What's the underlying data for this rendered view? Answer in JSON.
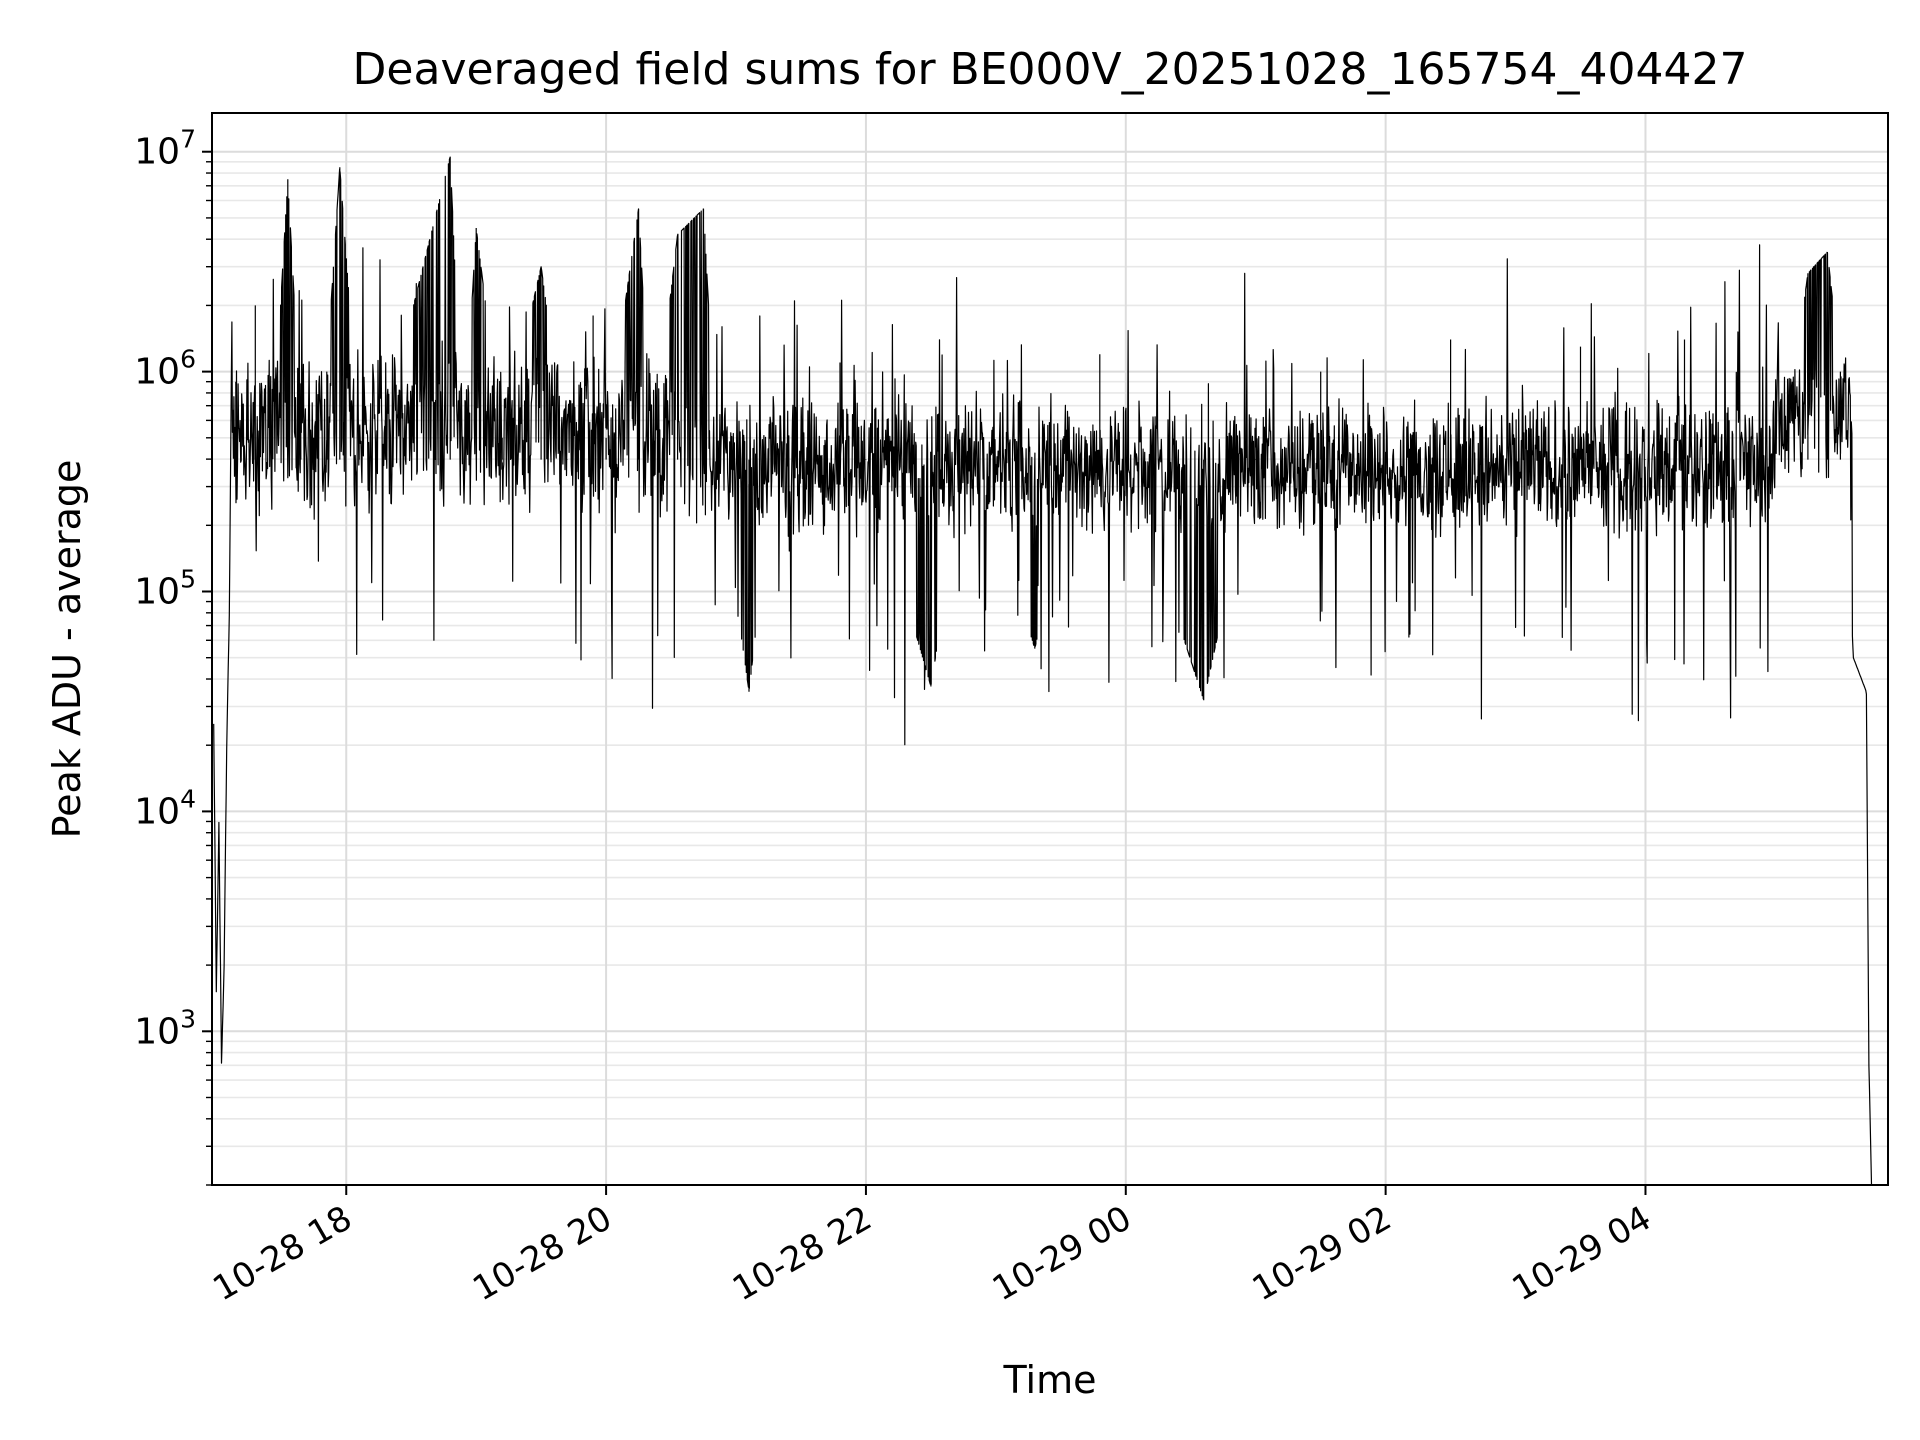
{
  "chart_data": {
    "type": "line",
    "title": "Deaveraged field sums for BE000V_20251028_165754_404427",
    "xlabel": "Time",
    "ylabel": "Peak ADU - average",
    "yscale": "log",
    "ylim": [
      200,
      15000000
    ],
    "xlim": [
      "10-28 16:58",
      "10-29 05:52"
    ],
    "grid": true,
    "legend": "none",
    "line_color": "#000000",
    "x_ticks": [
      {
        "label": "10-28 18",
        "hour": 18
      },
      {
        "label": "10-28 20",
        "hour": 20
      },
      {
        "label": "10-28 22",
        "hour": 22
      },
      {
        "label": "10-29 00",
        "hour": 24
      },
      {
        "label": "10-29 02",
        "hour": 26
      },
      {
        "label": "10-29 04",
        "hour": 28
      }
    ],
    "y_ticks": [
      {
        "base": "10",
        "exp": "3",
        "value": 1000
      },
      {
        "base": "10",
        "exp": "4",
        "value": 10000
      },
      {
        "base": "10",
        "exp": "5",
        "value": 100000
      },
      {
        "base": "10",
        "exp": "6",
        "value": 1000000
      },
      {
        "base": "10",
        "exp": "7",
        "value": 10000000
      }
    ],
    "series": [
      {
        "x_unit": "hours since 10-28 00:00",
        "points": [
          [
            16.98,
            25000
          ],
          [
            17.0,
            1500
          ],
          [
            17.02,
            9000
          ],
          [
            17.04,
            700
          ],
          [
            17.06,
            2000
          ],
          [
            17.08,
            20000
          ],
          [
            17.1,
            80000
          ],
          [
            17.12,
            1800000
          ],
          [
            17.15,
            900000
          ],
          [
            17.3,
            2000000
          ],
          [
            17.45,
            700000
          ],
          [
            17.55,
            7500000
          ],
          [
            17.65,
            600000
          ],
          [
            17.85,
            1000000
          ],
          [
            17.95,
            8500000
          ],
          [
            18.1,
            500000
          ],
          [
            18.3,
            600000
          ],
          [
            18.8,
            9500000
          ],
          [
            18.9,
            400000
          ],
          [
            19.0,
            4500000
          ],
          [
            19.2,
            500000
          ],
          [
            19.5,
            3000000
          ],
          [
            19.7,
            400000
          ],
          [
            19.9,
            1800000
          ],
          [
            20.0,
            500000
          ],
          [
            20.25,
            5500000
          ],
          [
            20.35,
            400000
          ],
          [
            20.55,
            4200000
          ],
          [
            20.75,
            5500000
          ],
          [
            20.85,
            400000
          ],
          [
            21.1,
            35000
          ],
          [
            21.3,
            400000
          ],
          [
            21.8,
            1100000
          ],
          [
            22.0,
            400000
          ],
          [
            22.5,
            37000
          ],
          [
            22.8,
            500000
          ],
          [
            23.3,
            55000
          ],
          [
            23.8,
            1200000
          ],
          [
            24.0,
            400000
          ],
          [
            24.6,
            32000
          ],
          [
            25.0,
            400000
          ],
          [
            25.5,
            1000000
          ],
          [
            26.0,
            400000
          ],
          [
            26.5,
            1400000
          ],
          [
            27.0,
            350000
          ],
          [
            27.5,
            1300000
          ],
          [
            28.0,
            400000
          ],
          [
            28.3,
            1400000
          ],
          [
            28.8,
            500000
          ],
          [
            29.1,
            600000
          ],
          [
            29.25,
            2800000
          ],
          [
            29.4,
            3500000
          ],
          [
            29.5,
            1000000
          ],
          [
            29.6,
            50000
          ],
          [
            29.7,
            35000
          ],
          [
            29.72,
            700
          ],
          [
            29.74,
            200
          ]
        ]
      }
    ]
  }
}
